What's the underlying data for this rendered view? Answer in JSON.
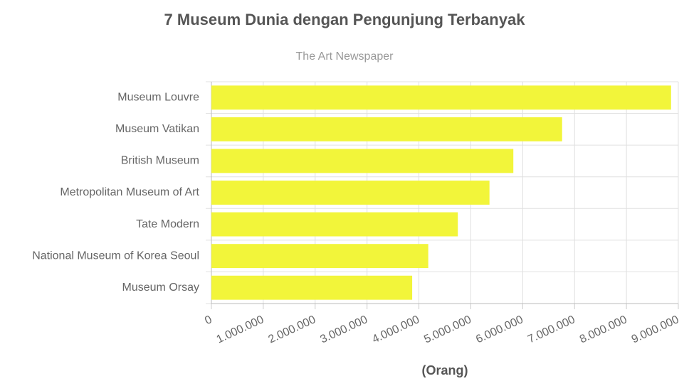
{
  "chart_data": {
    "type": "bar",
    "orientation": "horizontal",
    "title": "7 Museum Dunia dengan Pengunjung Terbanyak",
    "subtitle": "The Art Newspaper",
    "x_label": "(Orang)",
    "categories": [
      "Museum Louvre",
      "Museum Vatikan",
      "British Museum",
      "Metropolitan Museum of Art",
      "Tate Modern",
      "National Museum of Korea Seoul",
      "Museum Orsay"
    ],
    "values": [
      8860000,
      6760000,
      5820000,
      5360000,
      4750000,
      4180000,
      3870000
    ],
    "color": "#f2f53a",
    "xlim": [
      0,
      9000000
    ],
    "xticks": [
      0,
      {
        "value": 1000000,
        "label": "1.000.000"
      },
      {
        "value": 2000000,
        "label": "2.000.000"
      },
      {
        "value": 3000000,
        "label": "3.000.000"
      },
      {
        "value": 4000000,
        "label": "4.000.000"
      },
      {
        "value": 5000000,
        "label": "5.000.000"
      },
      {
        "value": 6000000,
        "label": "6.000.000"
      },
      {
        "value": 7000000,
        "label": "7.000.000"
      },
      {
        "value": 8000000,
        "label": "8.000.000"
      },
      {
        "value": 9000000,
        "label": "9.000.000"
      }
    ],
    "grid": true
  }
}
